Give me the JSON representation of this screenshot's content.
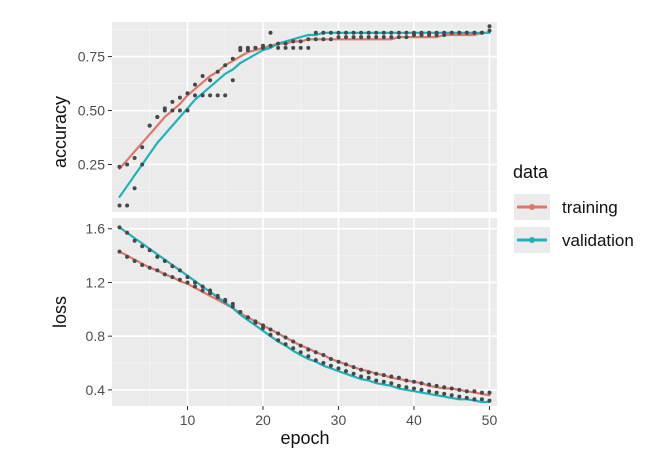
{
  "chart_data": {
    "type": "line",
    "x": [
      1,
      2,
      3,
      4,
      5,
      6,
      7,
      8,
      9,
      10,
      11,
      12,
      13,
      14,
      15,
      16,
      17,
      18,
      19,
      20,
      21,
      22,
      23,
      24,
      25,
      26,
      27,
      28,
      29,
      30,
      31,
      32,
      33,
      34,
      35,
      36,
      37,
      38,
      39,
      40,
      41,
      42,
      43,
      44,
      45,
      46,
      47,
      48,
      49,
      50
    ],
    "xlabel": "epoch",
    "xlim": [
      0,
      51
    ],
    "xticks": [
      10,
      20,
      30,
      40,
      50
    ],
    "xtick_labels": [
      "10",
      "20",
      "30",
      "40",
      "50"
    ],
    "legend": {
      "title": "data",
      "position": "right",
      "entries": [
        {
          "name": "training",
          "color": "#e0766d"
        },
        {
          "name": "validation",
          "color": "#1fb3b9"
        }
      ]
    },
    "panels": [
      {
        "name": "accuracy",
        "ylabel": "accuracy",
        "ylim": [
          0.03,
          0.91
        ],
        "yticks": [
          0.25,
          0.5,
          0.75
        ],
        "ytick_labels": [
          "0.25",
          "0.50",
          "0.75"
        ],
        "series": [
          {
            "name": "training",
            "color": "#e0766d",
            "values": [
              0.24,
              0.25,
              0.28,
              0.33,
              0.43,
              0.47,
              0.51,
              0.54,
              0.56,
              0.58,
              0.62,
              0.66,
              0.64,
              0.68,
              0.71,
              0.74,
              0.78,
              0.78,
              0.79,
              0.8,
              0.8,
              0.81,
              0.81,
              0.82,
              0.82,
              0.83,
              0.83,
              0.83,
              0.83,
              0.84,
              0.84,
              0.84,
              0.84,
              0.84,
              0.84,
              0.84,
              0.84,
              0.84,
              0.84,
              0.85,
              0.85,
              0.85,
              0.85,
              0.85,
              0.86,
              0.86,
              0.86,
              0.86,
              0.86,
              0.87
            ],
            "fitted": [
              0.23,
              0.27,
              0.31,
              0.35,
              0.39,
              0.43,
              0.47,
              0.5,
              0.53,
              0.57,
              0.6,
              0.63,
              0.66,
              0.68,
              0.71,
              0.73,
              0.75,
              0.77,
              0.78,
              0.79,
              0.8,
              0.81,
              0.81,
              0.82,
              0.82,
              0.83,
              0.83,
              0.83,
              0.83,
              0.83,
              0.83,
              0.83,
              0.83,
              0.83,
              0.83,
              0.83,
              0.83,
              0.84,
              0.84,
              0.84,
              0.84,
              0.84,
              0.84,
              0.85,
              0.85,
              0.85,
              0.85,
              0.85,
              0.86,
              0.86
            ]
          },
          {
            "name": "validation",
            "color": "#1fb3b9",
            "values": [
              0.06,
              0.06,
              0.14,
              0.25,
              0.43,
              0.47,
              0.5,
              0.5,
              0.5,
              0.5,
              0.57,
              0.57,
              0.57,
              0.57,
              0.57,
              0.64,
              0.79,
              0.79,
              0.79,
              0.79,
              0.86,
              0.79,
              0.79,
              0.79,
              0.79,
              0.79,
              0.86,
              0.86,
              0.86,
              0.86,
              0.86,
              0.86,
              0.86,
              0.86,
              0.86,
              0.86,
              0.86,
              0.86,
              0.86,
              0.86,
              0.86,
              0.86,
              0.86,
              0.86,
              0.86,
              0.86,
              0.86,
              0.86,
              0.86,
              0.89
            ],
            "fitted": [
              0.1,
              0.15,
              0.2,
              0.25,
              0.3,
              0.35,
              0.39,
              0.43,
              0.47,
              0.51,
              0.55,
              0.58,
              0.61,
              0.64,
              0.67,
              0.69,
              0.72,
              0.74,
              0.76,
              0.78,
              0.79,
              0.81,
              0.82,
              0.83,
              0.84,
              0.85,
              0.85,
              0.86,
              0.86,
              0.86,
              0.86,
              0.86,
              0.86,
              0.86,
              0.86,
              0.86,
              0.86,
              0.86,
              0.86,
              0.86,
              0.86,
              0.86,
              0.86,
              0.86,
              0.86,
              0.86,
              0.86,
              0.86,
              0.86,
              0.86
            ]
          }
        ]
      },
      {
        "name": "loss",
        "ylabel": "loss",
        "ylim": [
          0.28,
          1.68
        ],
        "yticks": [
          0.4,
          0.8,
          1.2,
          1.6
        ],
        "ytick_labels": [
          "0.4",
          "0.8",
          "1.2",
          "1.6"
        ],
        "series": [
          {
            "name": "training",
            "color": "#e0766d",
            "values": [
              1.43,
              1.39,
              1.36,
              1.33,
              1.31,
              1.29,
              1.26,
              1.24,
              1.22,
              1.2,
              1.17,
              1.14,
              1.12,
              1.09,
              1.06,
              1.02,
              0.98,
              0.94,
              0.91,
              0.88,
              0.85,
              0.82,
              0.79,
              0.76,
              0.73,
              0.7,
              0.68,
              0.66,
              0.63,
              0.61,
              0.59,
              0.57,
              0.55,
              0.53,
              0.52,
              0.51,
              0.5,
              0.49,
              0.47,
              0.46,
              0.45,
              0.44,
              0.43,
              0.42,
              0.41,
              0.4,
              0.39,
              0.39,
              0.38,
              0.38
            ],
            "fitted": [
              1.43,
              1.4,
              1.37,
              1.34,
              1.31,
              1.29,
              1.26,
              1.24,
              1.21,
              1.19,
              1.16,
              1.13,
              1.1,
              1.07,
              1.04,
              1.01,
              0.97,
              0.94,
              0.91,
              0.88,
              0.85,
              0.82,
              0.79,
              0.76,
              0.73,
              0.71,
              0.68,
              0.66,
              0.63,
              0.61,
              0.59,
              0.57,
              0.55,
              0.54,
              0.52,
              0.51,
              0.49,
              0.48,
              0.47,
              0.46,
              0.45,
              0.43,
              0.42,
              0.41,
              0.41,
              0.4,
              0.39,
              0.38,
              0.37,
              0.36
            ]
          },
          {
            "name": "validation",
            "color": "#1fb3b9",
            "values": [
              1.61,
              1.57,
              1.51,
              1.47,
              1.44,
              1.39,
              1.36,
              1.32,
              1.29,
              1.24,
              1.2,
              1.17,
              1.14,
              1.1,
              1.07,
              1.04,
              0.98,
              0.94,
              0.9,
              0.86,
              0.81,
              0.77,
              0.74,
              0.71,
              0.68,
              0.65,
              0.62,
              0.6,
              0.58,
              0.56,
              0.54,
              0.52,
              0.5,
              0.49,
              0.47,
              0.46,
              0.45,
              0.43,
              0.42,
              0.41,
              0.4,
              0.39,
              0.38,
              0.37,
              0.36,
              0.35,
              0.34,
              0.33,
              0.33,
              0.32
            ],
            "fitted": [
              1.61,
              1.57,
              1.53,
              1.49,
              1.45,
              1.41,
              1.37,
              1.33,
              1.29,
              1.25,
              1.21,
              1.17,
              1.13,
              1.09,
              1.05,
              1.01,
              0.96,
              0.92,
              0.88,
              0.84,
              0.8,
              0.76,
              0.73,
              0.69,
              0.66,
              0.63,
              0.61,
              0.58,
              0.56,
              0.54,
              0.52,
              0.5,
              0.48,
              0.47,
              0.45,
              0.44,
              0.43,
              0.41,
              0.4,
              0.39,
              0.38,
              0.37,
              0.36,
              0.35,
              0.34,
              0.33,
              0.33,
              0.32,
              0.31,
              0.31
            ]
          }
        ]
      }
    ]
  }
}
